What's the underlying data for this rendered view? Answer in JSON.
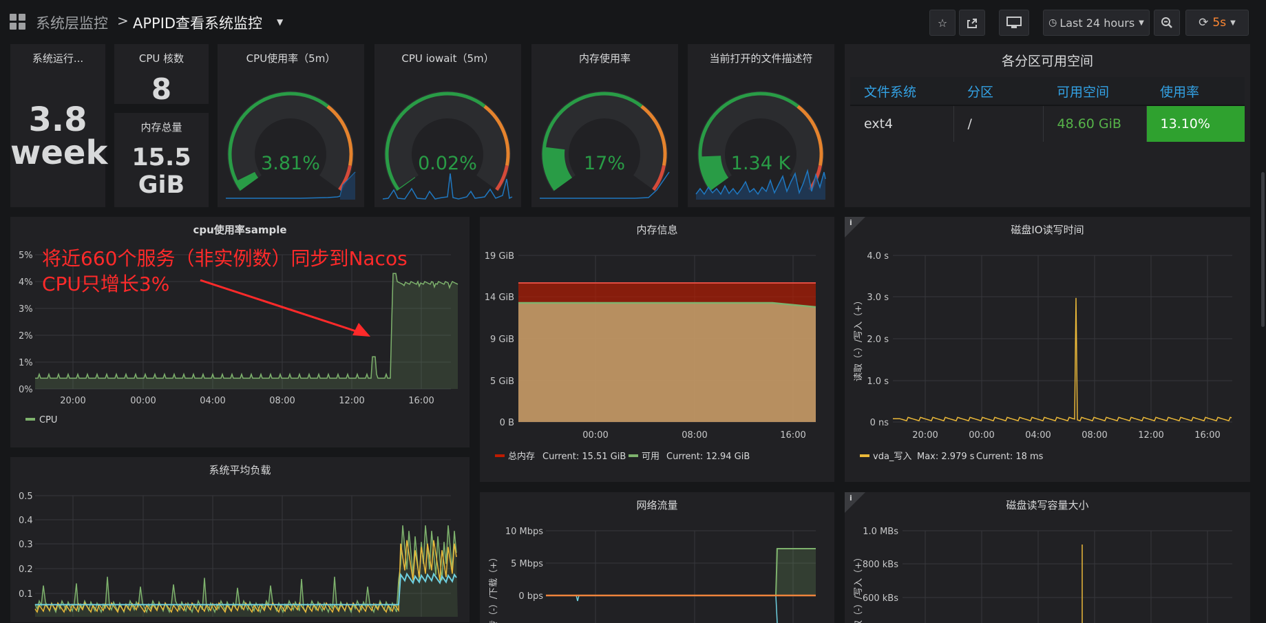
{
  "topbar": {
    "breadcrumb_parent": "系统层监控",
    "breadcrumb_sep": ">",
    "dashboard_title": "APPID查看系统监控",
    "time_range": "Last 24 hours",
    "refresh_interval": "5s"
  },
  "stats": {
    "uptime": {
      "title": "系统运行...",
      "value_line1": "3.8",
      "value_line2": "week"
    },
    "cpu_cores": {
      "title": "CPU 核数",
      "value": "8"
    },
    "mem_total": {
      "title": "内存总量",
      "value_line1": "15.5",
      "value_line2": "GiB"
    }
  },
  "gauges": [
    {
      "title": "CPU使用率（5m）",
      "value": "3.81%",
      "fraction": 0.0381
    },
    {
      "title": "CPU iowait（5m）",
      "value": "0.02%",
      "fraction": 0.0002
    },
    {
      "title": "内存使用率",
      "value": "17%",
      "fraction": 0.17
    },
    {
      "title": "当前打开的文件描述符",
      "value": "1.34 K",
      "fraction": 0.134
    }
  ],
  "partition_table": {
    "title": "各分区可用空间",
    "headers": [
      "文件系统",
      "分区",
      "可用空间",
      "使用率"
    ],
    "rows": [
      [
        "ext4",
        "/",
        "48.60 GiB",
        "13.10%"
      ]
    ]
  },
  "colors": {
    "green": "#299c46",
    "orange": "#e5832d",
    "red": "#d44a3a",
    "blue": "#33a2e5",
    "yellow": "#eab839",
    "cpu_line": "#7eb26d"
  },
  "annotation": {
    "line1": "将近660个服务（非实例数）同步到Nacos",
    "line2": "CPU只增长3%"
  },
  "chart_data": [
    {
      "type": "line",
      "title": "cpu使用率sample",
      "x": [
        "20:00",
        "00:00",
        "04:00",
        "08:00",
        "12:00",
        "16:00"
      ],
      "y_ticks": [
        "5%",
        "4%",
        "3%",
        "2%",
        "1%",
        "0%"
      ],
      "ylim": [
        0,
        5
      ],
      "series": [
        {
          "name": "CPU",
          "baseline": 0.4,
          "after_14_30": 4.0
        }
      ],
      "legend": "bottom-left"
    },
    {
      "type": "area",
      "title": "内存信息",
      "x": [
        "00:00",
        "08:00",
        "16:00"
      ],
      "y_ticks": [
        "19 GiB",
        "14 GiB",
        "9 GiB",
        "5 GiB",
        "0 B"
      ],
      "series": [
        {
          "name": "总内存",
          "current": "Current: 15.51 GiB",
          "value": 15.51
        },
        {
          "name": "可用",
          "current": "Current: 12.94 GiB",
          "value": 12.94
        }
      ]
    },
    {
      "type": "line",
      "title": "磁盘IO读写时间",
      "x": [
        "20:00",
        "00:00",
        "04:00",
        "08:00",
        "12:00",
        "16:00"
      ],
      "y_ticks": [
        "4.0 s",
        "3.0 s",
        "2.0 s",
        "1.0 s",
        "0 ns"
      ],
      "ylabel": "读取（-）/写入（+）",
      "series": [
        {
          "name": "vda_写入",
          "max": "Max: 2.979 s",
          "current": "Current: 18 ms",
          "peak": 2.979
        }
      ]
    },
    {
      "type": "line",
      "title": "系统平均负载",
      "y_ticks": [
        "0.5",
        "0.4",
        "0.3",
        "0.2",
        "0.1"
      ]
    },
    {
      "type": "line",
      "title": "网络流量",
      "y_ticks": [
        "10 Mbps",
        "5 Mbps",
        "0 bps"
      ],
      "ylabel": "上传（-）/下载（+）"
    },
    {
      "type": "line",
      "title": "磁盘读写容量大小",
      "y_ticks": [
        "1.0 MBs",
        "800 kBs",
        "600 kBs"
      ],
      "ylabel": "读取（-）/写入（+）"
    }
  ]
}
